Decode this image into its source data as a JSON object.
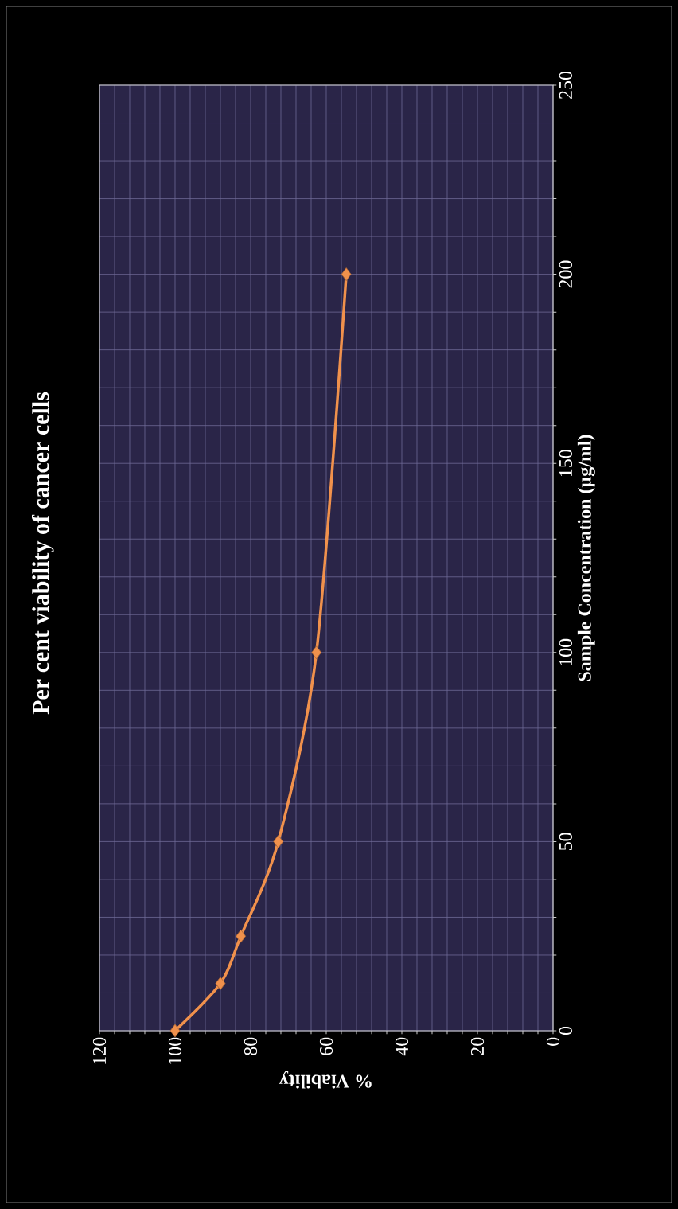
{
  "chart_data": {
    "type": "line",
    "title": "Per cent viability of cancer cells",
    "xlabel": "% Viability",
    "ylabel": "Sample Concentration (µg/ml)",
    "x": [
      100,
      88,
      82.6,
      72.7,
      62.6,
      54.7
    ],
    "series": [
      {
        "color": "#f0914c",
        "values": [
          0,
          12.5,
          25,
          50,
          100,
          200
        ]
      }
    ],
    "xlim": [
      120,
      0
    ],
    "ylim": [
      0,
      250
    ],
    "xticks": [
      120,
      {
        "value": 116,
        "label": null
      },
      {
        "value": 112,
        "label": null
      },
      {
        "value": 108,
        "label": null
      },
      {
        "value": 104,
        "label": null
      },
      100,
      {
        "value": 96,
        "label": null
      },
      {
        "value": 92,
        "label": null
      },
      {
        "value": 88,
        "label": null
      },
      {
        "value": 84,
        "label": null
      },
      80,
      {
        "value": 76,
        "label": null
      },
      {
        "value": 72,
        "label": null
      },
      {
        "value": 68,
        "label": null
      },
      {
        "value": 64,
        "label": null
      },
      60,
      {
        "value": 56,
        "label": null
      },
      {
        "value": 52,
        "label": null
      },
      {
        "value": 48,
        "label": null
      },
      {
        "value": 44,
        "label": null
      },
      40,
      {
        "value": 36,
        "label": null
      },
      {
        "value": 32,
        "label": null
      },
      {
        "value": 28,
        "label": null
      },
      {
        "value": 24,
        "label": null
      },
      20,
      {
        "value": 16,
        "label": null
      },
      {
        "value": 12,
        "label": null
      },
      {
        "value": 8,
        "label": null
      },
      {
        "value": 4,
        "label": null
      },
      0
    ],
    "yticks": [
      0,
      {
        "value": 10,
        "label": null
      },
      {
        "value": 20,
        "label": null
      },
      {
        "value": 30,
        "label": null
      },
      {
        "value": 40,
        "label": null
      },
      50,
      {
        "value": 60,
        "label": null
      },
      {
        "value": 70,
        "label": null
      },
      {
        "value": 80,
        "label": null
      },
      {
        "value": 90,
        "label": null
      },
      100,
      {
        "value": 110,
        "label": null
      },
      {
        "value": 120,
        "label": null
      },
      {
        "value": 130,
        "label": null
      },
      {
        "value": 140,
        "label": null
      },
      150,
      {
        "value": 160,
        "label": null
      },
      {
        "value": 170,
        "label": null
      },
      {
        "value": 180,
        "label": null
      },
      {
        "value": 190,
        "label": null
      },
      200,
      {
        "value": 210,
        "label": null
      },
      {
        "value": 220,
        "label": null
      },
      {
        "value": 230,
        "label": null
      },
      {
        "value": 240,
        "label": null
      },
      250
    ],
    "grid": true,
    "marker": "diamond",
    "line_style": "solid"
  }
}
